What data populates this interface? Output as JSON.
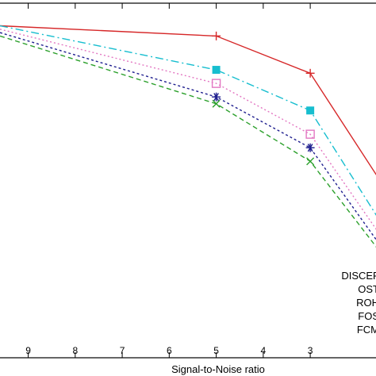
{
  "chart_data": {
    "type": "line",
    "xlabel": "Signal-to-Noise ratio",
    "ylabel": "",
    "title": "",
    "xlim": [
      9.6,
      1.5
    ],
    "ylim": [
      0.0,
      1.0
    ],
    "x_ticks": [
      9,
      8,
      7,
      6,
      5,
      4,
      3
    ],
    "x_tick_labels": [
      "9",
      "8",
      "7",
      "6",
      "5",
      "4",
      "3"
    ],
    "grid": false,
    "legend_position": "bottom-right",
    "legend": [
      "DISCEF",
      "OST",
      "ROH",
      "FOS",
      "FCM"
    ],
    "series": [
      {
        "name": "DISCEF",
        "color": "#d62728",
        "dash": "",
        "marker": "plus",
        "x": [
          9.6,
          5,
          3,
          1.5
        ],
        "y": [
          0.98,
          0.95,
          0.84,
          0.52
        ]
      },
      {
        "name": "OST",
        "color": "#17becf",
        "dash": "10,4,2,4",
        "marker": "square-filled",
        "x": [
          9.6,
          5,
          3,
          1.5
        ],
        "y": [
          0.98,
          0.85,
          0.73,
          0.4
        ]
      },
      {
        "name": "ROH",
        "color": "#e377c2",
        "dash": "2,3",
        "marker": "square-open",
        "x": [
          9.6,
          5,
          3,
          1.5
        ],
        "y": [
          0.97,
          0.81,
          0.66,
          0.36
        ]
      },
      {
        "name": "FOS",
        "color": "#1f1f8f",
        "dash": "3,3",
        "marker": "asterisk",
        "x": [
          9.6,
          5,
          3,
          1.5
        ],
        "y": [
          0.96,
          0.77,
          0.62,
          0.33
        ]
      },
      {
        "name": "FCM",
        "color": "#2ca02c",
        "dash": "6,4",
        "marker": "x",
        "x": [
          9.6,
          5,
          3,
          1.5
        ],
        "y": [
          0.95,
          0.75,
          0.58,
          0.31
        ]
      }
    ]
  }
}
